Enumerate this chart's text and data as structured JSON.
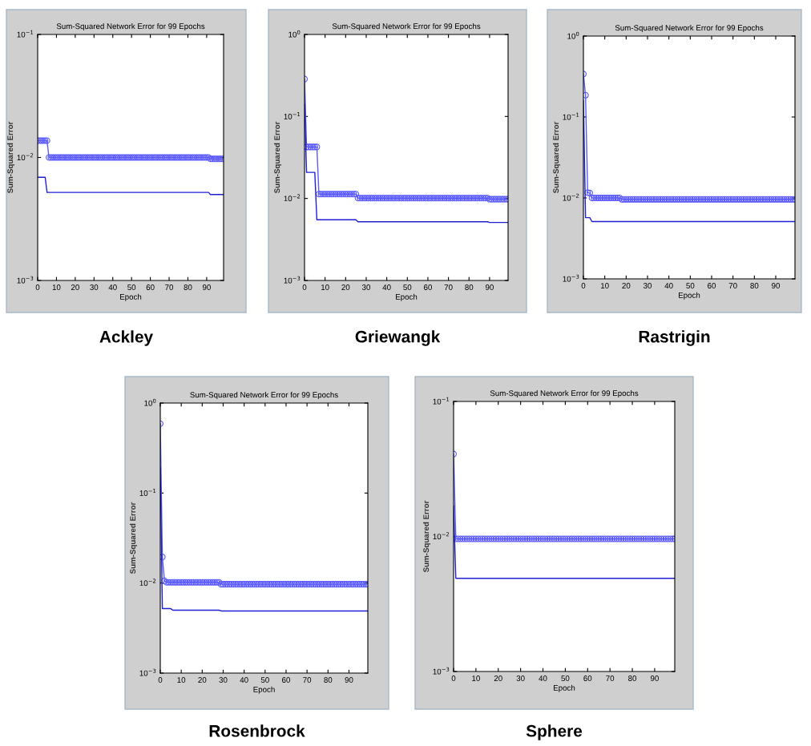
{
  "chart_data": [
    {
      "type": "line",
      "title": "Sum-Squared Network Error for 99 Epochs",
      "xlabel": "Epoch",
      "ylabel": "Sum-Squared Error",
      "log": "y",
      "xlim": [
        0,
        99
      ],
      "xticks": [
        0,
        10,
        20,
        30,
        40,
        50,
        60,
        70,
        80,
        90
      ],
      "ylim": [
        0.001,
        0.1
      ],
      "yticks": [
        {
          "value": 0.001,
          "label": "10$^{−3}$"
        },
        {
          "value": 0.01,
          "label": "10$^{−2}$"
        },
        {
          "value": 0.1,
          "label": "10$^{−1}$"
        }
      ],
      "annotations": [
        "Ackley"
      ],
      "series": [
        {
          "color": "#5a5aff",
          "marker": "circle",
          "x": [
            0,
            1,
            2,
            3,
            4,
            5,
            6,
            7,
            8,
            9,
            10,
            11,
            12,
            13,
            14,
            15,
            16,
            17,
            18,
            19,
            20,
            21,
            22,
            23,
            24,
            25,
            26,
            27,
            28,
            29,
            30,
            31,
            32,
            33,
            34,
            35,
            36,
            37,
            38,
            39,
            40,
            41,
            42,
            43,
            44,
            45,
            46,
            47,
            48,
            49,
            50,
            51,
            52,
            53,
            54,
            55,
            56,
            57,
            58,
            59,
            60,
            61,
            62,
            63,
            64,
            65,
            66,
            67,
            68,
            69,
            70,
            71,
            72,
            73,
            74,
            75,
            76,
            77,
            78,
            79,
            80,
            81,
            82,
            83,
            84,
            85,
            86,
            87,
            88,
            89,
            90,
            91,
            92,
            93,
            94,
            95,
            96,
            97,
            98,
            99
          ],
          "values": [
            0.0137,
            0.0137,
            0.0137,
            0.0137,
            0.0137,
            0.0137,
            0.01,
            0.01,
            0.01,
            0.01,
            0.01,
            0.01,
            0.01,
            0.01,
            0.01,
            0.01,
            0.01,
            0.01,
            0.01,
            0.01,
            0.01,
            0.01,
            0.01,
            0.01,
            0.01,
            0.01,
            0.01,
            0.01,
            0.01,
            0.01,
            0.01,
            0.01,
            0.01,
            0.01,
            0.01,
            0.01,
            0.01,
            0.01,
            0.01,
            0.01,
            0.01,
            0.01,
            0.01,
            0.01,
            0.01,
            0.01,
            0.01,
            0.01,
            0.01,
            0.01,
            0.01,
            0.01,
            0.01,
            0.01,
            0.01,
            0.01,
            0.01,
            0.01,
            0.01,
            0.01,
            0.01,
            0.01,
            0.01,
            0.01,
            0.01,
            0.01,
            0.01,
            0.01,
            0.01,
            0.01,
            0.01,
            0.01,
            0.01,
            0.01,
            0.01,
            0.01,
            0.01,
            0.01,
            0.01,
            0.01,
            0.01,
            0.01,
            0.01,
            0.01,
            0.01,
            0.01,
            0.01,
            0.01,
            0.01,
            0.01,
            0.01,
            0.01,
            0.00975,
            0.00975,
            0.00975,
            0.00975,
            0.00975,
            0.00975,
            0.00975,
            0.00975
          ]
        },
        {
          "color": "#1f1fd6",
          "marker": "none",
          "x": [
            0,
            4,
            5,
            91,
            92,
            99
          ],
          "values": [
            0.0069,
            0.0069,
            0.0052,
            0.0052,
            0.005,
            0.005
          ]
        }
      ]
    },
    {
      "type": "line",
      "title": "Sum-Squared Network Error for 99 Epochs",
      "xlabel": "Epoch",
      "ylabel": "Sum-Squared Error",
      "log": "y",
      "xlim": [
        0,
        99
      ],
      "xticks": [
        0,
        10,
        20,
        30,
        40,
        50,
        60,
        70,
        80,
        90
      ],
      "ylim": [
        0.001,
        1
      ],
      "yticks": [
        {
          "value": 0.001,
          "label": "10$^{−3}$"
        },
        {
          "value": 0.01,
          "label": "10$^{−2}$"
        },
        {
          "value": 0.1,
          "label": "10$^{−1}$"
        },
        {
          "value": 1,
          "label": "10$^{0}$"
        }
      ],
      "annotations": [
        "Griewangk"
      ],
      "series": [
        {
          "color": "#5a5aff",
          "marker": "circle",
          "x": [
            0,
            1,
            2,
            3,
            4,
            5,
            6,
            7,
            8,
            9,
            10,
            11,
            12,
            13,
            14,
            15,
            16,
            17,
            18,
            19,
            20,
            21,
            22,
            23,
            24,
            25,
            26,
            27,
            28,
            29,
            30,
            31,
            32,
            33,
            34,
            35,
            36,
            37,
            38,
            39,
            40,
            41,
            42,
            43,
            44,
            45,
            46,
            47,
            48,
            49,
            50,
            51,
            52,
            53,
            54,
            55,
            56,
            57,
            58,
            59,
            60,
            61,
            62,
            63,
            64,
            65,
            66,
            67,
            68,
            69,
            70,
            71,
            72,
            73,
            74,
            75,
            76,
            77,
            78,
            79,
            80,
            81,
            82,
            83,
            84,
            85,
            86,
            87,
            88,
            89,
            90,
            91,
            92,
            93,
            94,
            95,
            96,
            97,
            98,
            99
          ],
          "values": [
            0.286,
            0.0425,
            0.0425,
            0.0425,
            0.0425,
            0.0425,
            0.0425,
            0.0113,
            0.0113,
            0.0113,
            0.0113,
            0.0113,
            0.0113,
            0.0113,
            0.0113,
            0.0113,
            0.0113,
            0.0113,
            0.0113,
            0.0113,
            0.0113,
            0.0113,
            0.0113,
            0.0113,
            0.0113,
            0.0113,
            0.0101,
            0.0101,
            0.0101,
            0.0101,
            0.0101,
            0.0101,
            0.0101,
            0.0101,
            0.0101,
            0.0101,
            0.0101,
            0.0101,
            0.0101,
            0.0101,
            0.0101,
            0.0101,
            0.0101,
            0.0101,
            0.0101,
            0.0101,
            0.0101,
            0.0101,
            0.0101,
            0.0101,
            0.0101,
            0.0101,
            0.0101,
            0.0101,
            0.0101,
            0.0101,
            0.0101,
            0.0101,
            0.0101,
            0.0101,
            0.0101,
            0.0101,
            0.0101,
            0.0101,
            0.0101,
            0.0101,
            0.0101,
            0.0101,
            0.0101,
            0.0101,
            0.0101,
            0.0101,
            0.0101,
            0.0101,
            0.0101,
            0.0101,
            0.0101,
            0.0101,
            0.0101,
            0.0101,
            0.0101,
            0.0101,
            0.0101,
            0.0101,
            0.0101,
            0.0101,
            0.0101,
            0.0101,
            0.0101,
            0.0101,
            0.0098,
            0.0098,
            0.0098,
            0.0098,
            0.0098,
            0.0098,
            0.0098,
            0.0098,
            0.0098,
            0.0098
          ]
        },
        {
          "color": "#1f1fd6",
          "marker": "none",
          "x": [
            0,
            1,
            5,
            6,
            25,
            26,
            89,
            90,
            99
          ],
          "values": [
            0.142,
            0.0208,
            0.0208,
            0.0055,
            0.0055,
            0.0052,
            0.0052,
            0.0051,
            0.0051
          ]
        }
      ]
    },
    {
      "type": "line",
      "title": "Sum-Squared Network Error for 99 Epochs",
      "xlabel": "Epoch",
      "ylabel": "Sum-Squared Error",
      "log": "y",
      "xlim": [
        0,
        99
      ],
      "xticks": [
        0,
        10,
        20,
        30,
        40,
        50,
        60,
        70,
        80,
        90
      ],
      "ylim": [
        0.001,
        1
      ],
      "yticks": [
        {
          "value": 0.001,
          "label": "10$^{−3}$"
        },
        {
          "value": 0.01,
          "label": "10$^{−2}$"
        },
        {
          "value": 0.1,
          "label": "10$^{−1}$"
        },
        {
          "value": 1,
          "label": "10$^{0}$"
        }
      ],
      "annotations": [
        "Rastrigin"
      ],
      "series": [
        {
          "color": "#5a5aff",
          "marker": "circle",
          "x": [
            0,
            1,
            2,
            3,
            4,
            5,
            6,
            7,
            8,
            9,
            10,
            11,
            12,
            13,
            14,
            15,
            16,
            17,
            18,
            19,
            20,
            21,
            22,
            23,
            24,
            25,
            26,
            27,
            28,
            29,
            30,
            31,
            32,
            33,
            34,
            35,
            36,
            37,
            38,
            39,
            40,
            41,
            42,
            43,
            44,
            45,
            46,
            47,
            48,
            49,
            50,
            51,
            52,
            53,
            54,
            55,
            56,
            57,
            58,
            59,
            60,
            61,
            62,
            63,
            64,
            65,
            66,
            67,
            68,
            69,
            70,
            71,
            72,
            73,
            74,
            75,
            76,
            77,
            78,
            79,
            80,
            81,
            82,
            83,
            84,
            85,
            86,
            87,
            88,
            89,
            90,
            91,
            92,
            93,
            94,
            95,
            96,
            97,
            98,
            99
          ],
          "values": [
            0.34,
            0.186,
            0.0116,
            0.0115,
            0.01,
            0.01,
            0.01,
            0.01,
            0.01,
            0.01,
            0.01,
            0.01,
            0.01,
            0.01,
            0.01,
            0.01,
            0.01,
            0.01,
            0.0096,
            0.0096,
            0.0096,
            0.0096,
            0.0096,
            0.0096,
            0.0096,
            0.0096,
            0.0096,
            0.0096,
            0.0096,
            0.0096,
            0.0096,
            0.0096,
            0.0096,
            0.0096,
            0.0096,
            0.0096,
            0.0096,
            0.0096,
            0.0096,
            0.0096,
            0.0096,
            0.0096,
            0.0096,
            0.0096,
            0.0096,
            0.0096,
            0.0096,
            0.0096,
            0.0096,
            0.0096,
            0.0096,
            0.0096,
            0.0096,
            0.0096,
            0.0096,
            0.0096,
            0.0096,
            0.0096,
            0.0096,
            0.0096,
            0.0096,
            0.0096,
            0.0096,
            0.0096,
            0.0096,
            0.0096,
            0.0096,
            0.0096,
            0.0096,
            0.0096,
            0.0096,
            0.0096,
            0.0096,
            0.0096,
            0.0096,
            0.0096,
            0.0096,
            0.0096,
            0.0096,
            0.0096,
            0.0096,
            0.0096,
            0.0096,
            0.0096,
            0.0096,
            0.0096,
            0.0096,
            0.0096,
            0.0096,
            0.0096,
            0.0096,
            0.0096,
            0.0096,
            0.0096,
            0.0096,
            0.0096,
            0.0096,
            0.0096,
            0.0096,
            0.0096
          ]
        },
        {
          "color": "#1f1fd6",
          "marker": "none",
          "x": [
            0,
            1,
            3,
            4,
            99
          ],
          "values": [
            0.16,
            0.0057,
            0.0057,
            0.0051,
            0.0051
          ]
        }
      ]
    },
    {
      "type": "line",
      "title": "Sum-Squared Network Error for 99 Epochs",
      "xlabel": "Epoch",
      "ylabel": "Sum-Squared Error",
      "log": "y",
      "xlim": [
        0,
        99
      ],
      "xticks": [
        0,
        10,
        20,
        30,
        40,
        50,
        60,
        70,
        80,
        90
      ],
      "ylim": [
        0.001,
        1
      ],
      "yticks": [
        {
          "value": 0.001,
          "label": "10$^{−3}$"
        },
        {
          "value": 0.01,
          "label": "10$^{−2}$"
        },
        {
          "value": 0.1,
          "label": "10$^{−1}$"
        },
        {
          "value": 1,
          "label": "10$^{0}$"
        }
      ],
      "annotations": [
        "Rosenbrock"
      ],
      "series": [
        {
          "color": "#5a5aff",
          "marker": "circle",
          "x": [
            0,
            1,
            2,
            3,
            4,
            5,
            6,
            7,
            8,
            9,
            10,
            11,
            12,
            13,
            14,
            15,
            16,
            17,
            18,
            19,
            20,
            21,
            22,
            23,
            24,
            25,
            26,
            27,
            28,
            29,
            30,
            31,
            32,
            33,
            34,
            35,
            36,
            37,
            38,
            39,
            40,
            41,
            42,
            43,
            44,
            45,
            46,
            47,
            48,
            49,
            50,
            51,
            52,
            53,
            54,
            55,
            56,
            57,
            58,
            59,
            60,
            61,
            62,
            63,
            64,
            65,
            66,
            67,
            68,
            69,
            70,
            71,
            72,
            73,
            74,
            75,
            76,
            77,
            78,
            79,
            80,
            81,
            82,
            83,
            84,
            85,
            86,
            87,
            88,
            89,
            90,
            91,
            92,
            93,
            94,
            95,
            96,
            97,
            98,
            99
          ],
          "values": [
            0.59,
            0.0195,
            0.0106,
            0.0102,
            0.0102,
            0.0102,
            0.0102,
            0.0102,
            0.0102,
            0.0102,
            0.0102,
            0.0102,
            0.0102,
            0.0102,
            0.0102,
            0.0102,
            0.0102,
            0.0102,
            0.0102,
            0.0102,
            0.0102,
            0.0102,
            0.0102,
            0.0102,
            0.0102,
            0.0102,
            0.0102,
            0.0102,
            0.0102,
            0.0097,
            0.0097,
            0.0097,
            0.0097,
            0.0097,
            0.0097,
            0.0097,
            0.0097,
            0.0097,
            0.0097,
            0.0097,
            0.0097,
            0.0097,
            0.0097,
            0.0097,
            0.0097,
            0.0097,
            0.0097,
            0.0097,
            0.0097,
            0.0097,
            0.0097,
            0.0097,
            0.0097,
            0.0097,
            0.0097,
            0.0097,
            0.0097,
            0.0097,
            0.0097,
            0.0097,
            0.0097,
            0.0097,
            0.0097,
            0.0097,
            0.0097,
            0.0097,
            0.0097,
            0.0097,
            0.0097,
            0.0097,
            0.0097,
            0.0097,
            0.0097,
            0.0097,
            0.0097,
            0.0097,
            0.0097,
            0.0097,
            0.0097,
            0.0097,
            0.0097,
            0.0097,
            0.0097,
            0.0097,
            0.0097,
            0.0097,
            0.0097,
            0.0097,
            0.0097,
            0.0097,
            0.0097,
            0.0097,
            0.0097,
            0.0097,
            0.0097,
            0.0097,
            0.0097,
            0.0097,
            0.0097,
            0.0097
          ]
        },
        {
          "color": "#1f1fd6",
          "marker": "none",
          "x": [
            0,
            1,
            5,
            6,
            28,
            29,
            99
          ],
          "values": [
            0.19,
            0.0052,
            0.0052,
            0.005,
            0.005,
            0.0049,
            0.0049
          ]
        }
      ]
    },
    {
      "type": "line",
      "title": "Sum-Squared Network Error for 99 Epochs",
      "xlabel": "Epoch",
      "ylabel": "Sum-Squared Error",
      "log": "y",
      "xlim": [
        0,
        99
      ],
      "xticks": [
        0,
        10,
        20,
        30,
        40,
        50,
        60,
        70,
        80,
        90
      ],
      "ylim": [
        0.001,
        0.1
      ],
      "yticks": [
        {
          "value": 0.001,
          "label": "10$^{−3}$"
        },
        {
          "value": 0.01,
          "label": "10$^{−2}$"
        },
        {
          "value": 0.1,
          "label": "10$^{−1}$"
        }
      ],
      "annotations": [
        "Sphere"
      ],
      "series": [
        {
          "color": "#5a5aff",
          "marker": "circle",
          "x": [
            0,
            1,
            2,
            3,
            4,
            5,
            6,
            7,
            8,
            9,
            10,
            11,
            12,
            13,
            14,
            15,
            16,
            17,
            18,
            19,
            20,
            21,
            22,
            23,
            24,
            25,
            26,
            27,
            28,
            29,
            30,
            31,
            32,
            33,
            34,
            35,
            36,
            37,
            38,
            39,
            40,
            41,
            42,
            43,
            44,
            45,
            46,
            47,
            48,
            49,
            50,
            51,
            52,
            53,
            54,
            55,
            56,
            57,
            58,
            59,
            60,
            61,
            62,
            63,
            64,
            65,
            66,
            67,
            68,
            69,
            70,
            71,
            72,
            73,
            74,
            75,
            76,
            77,
            78,
            79,
            80,
            81,
            82,
            83,
            84,
            85,
            86,
            87,
            88,
            89,
            90,
            91,
            92,
            93,
            94,
            95,
            96,
            97,
            98,
            99
          ],
          "values": [
            0.0408,
            0.0096,
            0.0096,
            0.0096,
            0.0096,
            0.0096,
            0.0096,
            0.0096,
            0.0096,
            0.0096,
            0.0096,
            0.0096,
            0.0096,
            0.0096,
            0.0096,
            0.0096,
            0.0096,
            0.0096,
            0.0096,
            0.0096,
            0.0096,
            0.0096,
            0.0096,
            0.0096,
            0.0096,
            0.0096,
            0.0096,
            0.0096,
            0.0096,
            0.0096,
            0.0096,
            0.0096,
            0.0096,
            0.0096,
            0.0096,
            0.0096,
            0.0096,
            0.0096,
            0.0096,
            0.0096,
            0.0096,
            0.0096,
            0.0096,
            0.0096,
            0.0096,
            0.0096,
            0.0096,
            0.0096,
            0.0096,
            0.0096,
            0.0096,
            0.0096,
            0.0096,
            0.0096,
            0.0096,
            0.0096,
            0.0096,
            0.0096,
            0.0096,
            0.0096,
            0.0096,
            0.0096,
            0.0096,
            0.0096,
            0.0096,
            0.0096,
            0.0096,
            0.0096,
            0.0096,
            0.0096,
            0.0096,
            0.0096,
            0.0096,
            0.0096,
            0.0096,
            0.0096,
            0.0096,
            0.0096,
            0.0096,
            0.0096,
            0.0096,
            0.0096,
            0.0096,
            0.0096,
            0.0096,
            0.0096,
            0.0096,
            0.0096,
            0.0096,
            0.0096,
            0.0096,
            0.0096,
            0.0096,
            0.0096,
            0.0096,
            0.0096,
            0.0096,
            0.0096,
            0.0096,
            0.0096
          ]
        },
        {
          "color": "#1f1fd6",
          "marker": "none",
          "x": [
            0,
            1,
            99
          ],
          "values": [
            0.0168,
            0.0049,
            0.0049
          ]
        }
      ]
    }
  ]
}
